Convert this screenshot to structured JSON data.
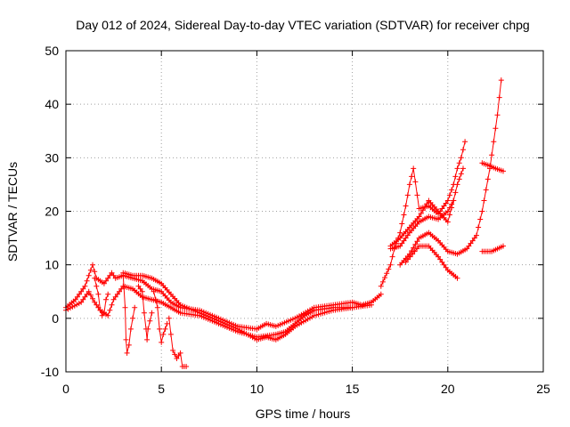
{
  "chart_data": {
    "type": "scatter",
    "title": "Day 012 of 2024, Sidereal Day-to-day VTEC variation (SDTVAR) for receiver chpg",
    "xlabel": "GPS time / hours",
    "ylabel": "SDTVAR / TECUs",
    "xlim": [
      0,
      25
    ],
    "ylim": [
      -10,
      50
    ],
    "xticks": [
      0,
      5,
      10,
      15,
      20,
      25
    ],
    "yticks": [
      -10,
      0,
      10,
      20,
      30,
      40,
      50
    ],
    "xtick_labels": [
      "0",
      "5",
      "10",
      "15",
      "20",
      "25"
    ],
    "ytick_labels": [
      "-10",
      "0",
      "10",
      "20",
      "30",
      "40",
      "50"
    ],
    "grid": true,
    "marker": "plus",
    "color": "#ff0000",
    "series": [
      {
        "name": "main-trace-a",
        "points": [
          [
            0.0,
            2.0
          ],
          [
            0.5,
            3.5
          ],
          [
            1.0,
            6.0
          ],
          [
            1.4,
            10.0
          ],
          [
            1.6,
            7.5
          ],
          [
            2.0,
            6.5
          ],
          [
            2.4,
            8.5
          ],
          [
            2.6,
            7.5
          ],
          [
            3.0,
            8.0
          ],
          [
            3.5,
            7.5
          ],
          [
            4.0,
            7.0
          ],
          [
            4.5,
            5.5
          ],
          [
            5.0,
            5.0
          ],
          [
            5.5,
            3.0
          ],
          [
            6.0,
            2.0
          ],
          [
            7.0,
            1.5
          ],
          [
            8.0,
            0.0
          ],
          [
            9.0,
            -1.5
          ],
          [
            10.0,
            -2.0
          ],
          [
            10.5,
            -1.0
          ],
          [
            11.0,
            -1.5
          ],
          [
            12.0,
            0.0
          ],
          [
            13.0,
            2.0
          ],
          [
            14.0,
            2.5
          ],
          [
            15.0,
            3.0
          ],
          [
            15.5,
            2.5
          ],
          [
            16.0,
            3.0
          ],
          [
            16.5,
            4.5
          ]
        ]
      },
      {
        "name": "main-trace-b",
        "points": [
          [
            0.0,
            1.5
          ],
          [
            0.8,
            3.0
          ],
          [
            1.2,
            5.0
          ],
          [
            1.5,
            3.0
          ],
          [
            1.8,
            1.5
          ],
          [
            2.2,
            0.5
          ],
          [
            2.5,
            3.5
          ],
          [
            3.0,
            6.0
          ],
          [
            3.5,
            5.5
          ],
          [
            4.0,
            4.0
          ],
          [
            4.5,
            3.5
          ],
          [
            5.0,
            3.0
          ],
          [
            5.5,
            2.0
          ],
          [
            6.0,
            1.0
          ],
          [
            7.0,
            0.5
          ],
          [
            8.0,
            -1.0
          ],
          [
            9.0,
            -2.5
          ],
          [
            10.0,
            -3.5
          ],
          [
            11.0,
            -3.0
          ],
          [
            11.5,
            -2.5
          ],
          [
            12.0,
            -1.0
          ],
          [
            12.5,
            0.5
          ],
          [
            13.0,
            1.5
          ],
          [
            14.0,
            2.0
          ],
          [
            15.0,
            2.0
          ],
          [
            16.0,
            2.5
          ]
        ]
      },
      {
        "name": "main-trace-c",
        "points": [
          [
            3.0,
            8.5
          ],
          [
            3.5,
            8.0
          ],
          [
            4.0,
            8.0
          ],
          [
            4.5,
            7.5
          ],
          [
            5.0,
            6.5
          ],
          [
            5.5,
            4.5
          ],
          [
            6.0,
            2.5
          ],
          [
            7.0,
            1.0
          ],
          [
            8.0,
            -0.5
          ],
          [
            9.0,
            -2.0
          ],
          [
            10.0,
            -4.0
          ],
          [
            10.5,
            -3.5
          ],
          [
            11.0,
            -4.0
          ],
          [
            11.5,
            -3.0
          ],
          [
            12.0,
            -1.5
          ],
          [
            13.0,
            0.5
          ],
          [
            14.0,
            1.5
          ],
          [
            15.0,
            2.0
          ]
        ]
      },
      {
        "name": "dip-1",
        "points": [
          [
            1.5,
            7.5
          ],
          [
            1.7,
            4.5
          ],
          [
            1.8,
            1.5
          ],
          [
            1.9,
            0.5
          ],
          [
            2.0,
            1.0
          ],
          [
            2.1,
            3.5
          ],
          [
            2.2,
            4.5
          ]
        ]
      },
      {
        "name": "dip-2",
        "points": [
          [
            3.0,
            8.0
          ],
          [
            3.1,
            2.0
          ],
          [
            3.15,
            -4.0
          ],
          [
            3.2,
            -6.5
          ],
          [
            3.3,
            -5.0
          ],
          [
            3.4,
            -2.0
          ],
          [
            3.6,
            2.0
          ]
        ]
      },
      {
        "name": "dip-3",
        "points": [
          [
            3.8,
            6.0
          ],
          [
            4.0,
            5.0
          ],
          [
            4.1,
            1.0
          ],
          [
            4.2,
            -2.0
          ],
          [
            4.25,
            -4.0
          ],
          [
            4.3,
            -2.0
          ],
          [
            4.5,
            1.0
          ]
        ]
      },
      {
        "name": "dip-4",
        "points": [
          [
            4.6,
            5.0
          ],
          [
            4.8,
            2.0
          ],
          [
            4.9,
            -2.0
          ],
          [
            5.0,
            -4.5
          ],
          [
            5.1,
            -3.0
          ],
          [
            5.3,
            -1.0
          ]
        ]
      },
      {
        "name": "dip-5",
        "points": [
          [
            5.4,
            0.0
          ],
          [
            5.5,
            -3.0
          ],
          [
            5.6,
            -6.0
          ],
          [
            5.8,
            -7.5
          ],
          [
            6.0,
            -6.5
          ],
          [
            6.1,
            -9.0
          ],
          [
            6.3,
            -9.0
          ]
        ]
      },
      {
        "name": "evening-a",
        "points": [
          [
            16.5,
            6.0
          ],
          [
            17.0,
            10.0
          ],
          [
            17.2,
            13.0
          ],
          [
            17.5,
            16.0
          ],
          [
            17.8,
            21.0
          ],
          [
            18.0,
            25.0
          ],
          [
            18.2,
            28.0
          ],
          [
            18.5,
            20.5
          ],
          [
            19.0,
            21.0
          ],
          [
            19.5,
            19.5
          ],
          [
            20.0,
            22.0
          ],
          [
            20.3,
            25.0
          ],
          [
            20.5,
            28.0
          ],
          [
            20.7,
            30.0
          ],
          [
            20.9,
            33.0
          ]
        ]
      },
      {
        "name": "evening-b",
        "points": [
          [
            17.0,
            13.5
          ],
          [
            17.5,
            15.0
          ],
          [
            18.0,
            17.0
          ],
          [
            18.5,
            19.0
          ],
          [
            19.0,
            22.0
          ],
          [
            19.5,
            20.0
          ],
          [
            20.0,
            18.0
          ],
          [
            20.3,
            22.0
          ],
          [
            20.5,
            25.0
          ],
          [
            20.8,
            28.0
          ]
        ]
      },
      {
        "name": "evening-c",
        "points": [
          [
            17.0,
            13.0
          ],
          [
            17.5,
            13.5
          ],
          [
            18.0,
            16.0
          ],
          [
            18.5,
            18.0
          ],
          [
            19.0,
            19.0
          ],
          [
            19.5,
            18.5
          ],
          [
            20.0,
            20.0
          ],
          [
            20.3,
            22.0
          ]
        ]
      },
      {
        "name": "evening-d",
        "points": [
          [
            17.5,
            10.0
          ],
          [
            18.0,
            12.0
          ],
          [
            18.5,
            15.0
          ],
          [
            19.0,
            16.0
          ],
          [
            19.5,
            14.5
          ],
          [
            20.0,
            12.5
          ],
          [
            20.5,
            12.0
          ],
          [
            21.0,
            13.0
          ],
          [
            21.5,
            15.5
          ],
          [
            21.8,
            20.0
          ],
          [
            22.0,
            24.0
          ],
          [
            22.2,
            28.0
          ],
          [
            22.4,
            33.0
          ],
          [
            22.6,
            38.0
          ],
          [
            22.8,
            44.5
          ]
        ]
      },
      {
        "name": "evening-e",
        "points": [
          [
            17.8,
            10.5
          ],
          [
            18.5,
            13.5
          ],
          [
            19.0,
            13.5
          ],
          [
            19.5,
            11.5
          ],
          [
            20.0,
            9.0
          ],
          [
            20.5,
            7.5
          ]
        ]
      },
      {
        "name": "late-a",
        "points": [
          [
            21.8,
            29.0
          ],
          [
            22.2,
            28.5
          ],
          [
            22.5,
            28.0
          ],
          [
            22.9,
            27.5
          ]
        ]
      },
      {
        "name": "late-b",
        "points": [
          [
            21.8,
            12.5
          ],
          [
            22.3,
            12.5
          ],
          [
            22.6,
            13.0
          ],
          [
            22.9,
            13.5
          ]
        ]
      }
    ]
  }
}
